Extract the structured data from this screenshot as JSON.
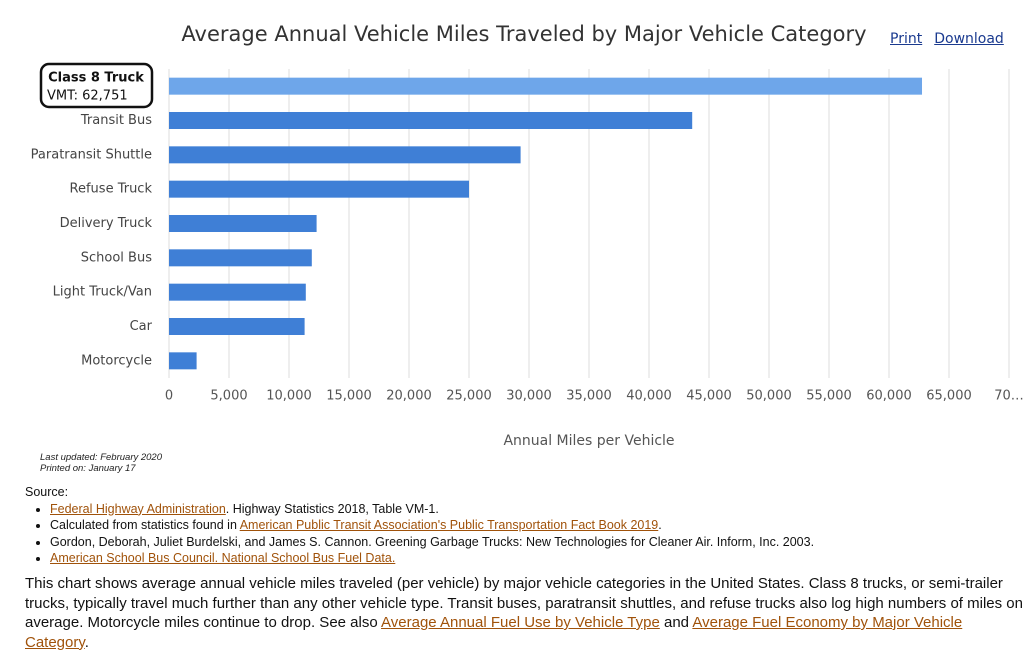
{
  "chart_data": {
    "type": "bar",
    "orientation": "horizontal",
    "title": "Average Annual Vehicle Miles Traveled by Major Vehicle Category",
    "categories": [
      "Class 8 Truck",
      "Transit Bus",
      "Paratransit Shuttle",
      "Refuse Truck",
      "Delivery Truck",
      "School Bus",
      "Light Truck/Van",
      "Car",
      "Motorcycle"
    ],
    "values": [
      62751,
      43600,
      29300,
      25000,
      12300,
      11900,
      11400,
      11300,
      2300
    ],
    "colors": [
      "#6ea6ea",
      "#3f7fd6",
      "#3f7fd6",
      "#3f7fd6",
      "#3f7fd6",
      "#3f7fd6",
      "#3f7fd6",
      "#3f7fd6",
      "#3f7fd6"
    ],
    "xlabel": "Annual Miles per Vehicle",
    "xlim": [
      0,
      70000
    ],
    "xticks": [
      0,
      {
        "value": 5000,
        "label": "5,000"
      },
      {
        "value": 10000,
        "label": "10,000"
      },
      {
        "value": 15000,
        "label": "15,000"
      },
      {
        "value": 20000,
        "label": "20,000"
      },
      {
        "value": 25000,
        "label": "25,000"
      },
      {
        "value": 30000,
        "label": "30,000"
      },
      {
        "value": 35000,
        "label": "35,000"
      },
      {
        "value": 40000,
        "label": "40,000"
      },
      {
        "value": 45000,
        "label": "45,000"
      },
      {
        "value": 50000,
        "label": "50,000"
      },
      {
        "value": 55000,
        "label": "55,000"
      },
      {
        "value": 60000,
        "label": "60,000"
      },
      {
        "value": 65000,
        "label": "65,000"
      },
      {
        "value": 70000,
        "label": "70…"
      }
    ],
    "grid": true,
    "tooltip": "VMT: 62,751"
  },
  "links": [
    "Print",
    "Download"
  ],
  "notes": [
    "Last updated: February 2020",
    "Printed on: January 17"
  ],
  "source_title": "Source:",
  "sources": [
    [
      {
        "text": "Federal Highway Administration",
        "link": true
      },
      {
        "text": ". Highway Statistics 2018, Table VM-1.",
        "link": false
      }
    ],
    [
      {
        "text": "Calculated from statistics found in ",
        "link": false
      },
      {
        "text": "American Public Transit Association's Public Transportation Fact Book 2019",
        "link": true
      },
      {
        "text": ".",
        "link": false
      }
    ],
    [
      {
        "text": "Gordon, Deborah, Juliet Burdelski, and James S. Cannon. Greening Garbage Trucks: New Technologies for Cleaner Air. Inform, Inc. 2003.",
        "link": false
      }
    ],
    [
      {
        "text": "American School Bus Council. National School Bus Fuel Data.",
        "link": true
      }
    ]
  ],
  "description": [
    {
      "text": "This chart shows average annual vehicle miles traveled (per vehicle) by major vehicle categories in the United States. Class 8 trucks, or semi-trailer trucks, typically travel much further than any other vehicle type. Transit buses, paratransit shuttles, and refuse trucks also log high numbers of miles on average. Motorcycle miles continue to drop. See also ",
      "link": false
    },
    {
      "text": "Average Annual Fuel Use by Vehicle Type",
      "link": true
    },
    {
      "text": " and ",
      "link": false
    },
    {
      "text": "Average Fuel Economy by Major Vehicle Category",
      "link": true
    },
    {
      "text": ".",
      "link": false
    }
  ]
}
